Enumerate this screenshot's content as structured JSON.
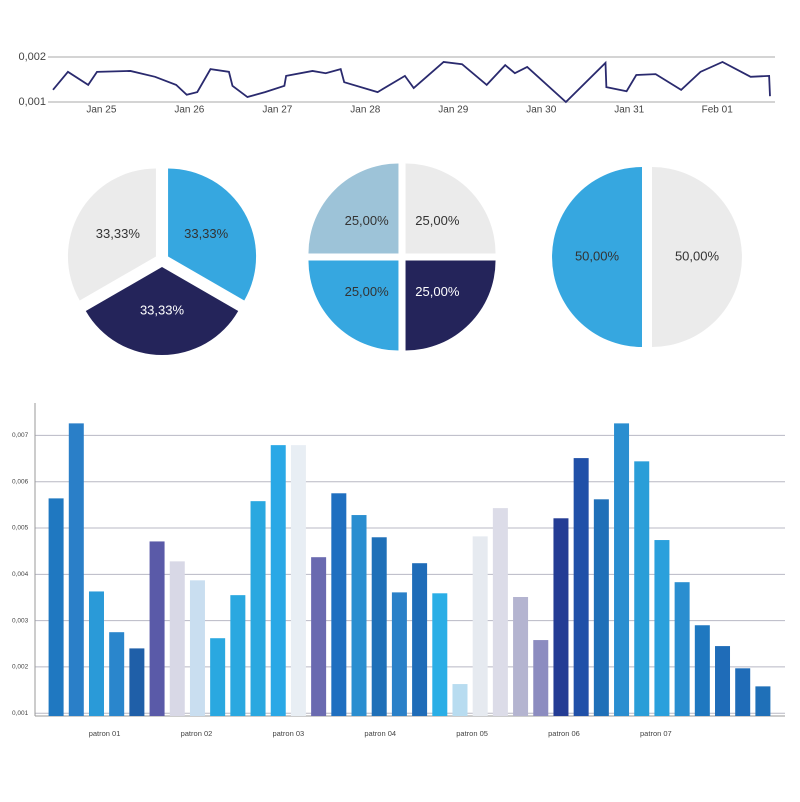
{
  "chart_data": [
    {
      "type": "line",
      "x": [
        -0.55,
        -0.38,
        -0.15,
        -0.05,
        0.33,
        0.61,
        0.85,
        0.97,
        1.09,
        1.24,
        1.45,
        1.49,
        1.66,
        1.86,
        2.08,
        2.1,
        2.4,
        2.55,
        2.72,
        2.76,
        3.14,
        3.45,
        3.55,
        3.89,
        4.1,
        4.38,
        4.59,
        4.7,
        4.84,
        5.28,
        5.73,
        5.74,
        5.97,
        6.08,
        6.3,
        6.59,
        6.81,
        7.06,
        7.38,
        7.59,
        7.6
      ],
      "series": [
        {
          "color": "#2a2a6e",
          "values": [
            0.00127,
            0.00167,
            0.00138,
            0.00167,
            0.00169,
            0.00156,
            0.00138,
            0.00116,
            0.00122,
            0.00173,
            0.00167,
            0.00136,
            0.00111,
            0.00122,
            0.00136,
            0.00158,
            0.00169,
            0.00164,
            0.00173,
            0.00144,
            0.00122,
            0.00158,
            0.00131,
            0.00189,
            0.00184,
            0.00138,
            0.00182,
            0.00164,
            0.00178,
            0.001,
            0.00187,
            0.00133,
            0.00124,
            0.0016,
            0.00162,
            0.00127,
            0.00167,
            0.00189,
            0.00156,
            0.00158,
            0.00113
          ]
        }
      ],
      "xlim": [
        -0.55,
        7.6
      ],
      "xticks": [
        {
          "value": 0,
          "label": "Jan 25"
        },
        {
          "value": 1,
          "label": "Jan 26"
        },
        {
          "value": 2,
          "label": "Jan 27"
        },
        {
          "value": 3,
          "label": "Jan 28"
        },
        {
          "value": 4,
          "label": "Jan 29"
        },
        {
          "value": 5,
          "label": "Jan 30"
        },
        {
          "value": 6,
          "label": "Jan 31"
        },
        {
          "value": 7,
          "label": "Feb 01"
        }
      ],
      "ylim": [
        0.001,
        0.002
      ],
      "yticks": [
        {
          "value": 0.002,
          "label": "0,002"
        },
        {
          "value": 0.001,
          "label": "0,001"
        }
      ],
      "grid": true
    },
    {
      "type": "pie",
      "values": [
        33.33,
        33.33,
        33.33
      ],
      "value_labels": [
        "33,33%",
        "33,33%",
        "33,33%"
      ],
      "colors": [
        "#36a7e0",
        "#24245a",
        "#ebebeb"
      ]
    },
    {
      "type": "pie",
      "values": [
        25,
        25,
        25,
        25
      ],
      "value_labels": [
        "25,00%",
        "25,00%",
        "25,00%",
        "25,00%"
      ],
      "colors": [
        "#ebebeb",
        "#24245a",
        "#36a7e0",
        "#9dc3d8"
      ]
    },
    {
      "type": "pie",
      "values": [
        50,
        50
      ],
      "value_labels": [
        "50,00%",
        "50,00%"
      ],
      "colors": [
        "#ebebeb",
        "#36a7e0"
      ]
    },
    {
      "type": "bar",
      "values": [
        0.00564,
        0.00726,
        0.00363,
        0.00275,
        0.0024,
        0.00471,
        0.00428,
        0.00387,
        0.00262,
        0.00355,
        0.00558,
        0.00679,
        0.00679,
        0.00437,
        0.00575,
        0.00528,
        0.0048,
        0.00361,
        0.00424,
        0.00359,
        0.00163,
        0.00482,
        0.00543,
        0.00351,
        0.00258,
        0.00521,
        0.00651,
        0.00562,
        0.00726,
        0.00644,
        0.00474,
        0.00383,
        0.0029,
        0.00245,
        0.00197,
        0.00158
      ],
      "colors": [
        "#1f78c1",
        "#2a7fc8",
        "#2a9ad8",
        "#2a86cc",
        "#1f5fa8",
        "#5a5aa8",
        "#d8d8e6",
        "#c9def0",
        "#2aa8e0",
        "#2aa8e0",
        "#2aa8e0",
        "#2aa8e6",
        "#e8eef4",
        "#6a6ab0",
        "#1f6fc0",
        "#2a8ed0",
        "#1f70b8",
        "#2a80c8",
        "#1f6cb8",
        "#2aaee6",
        "#b8dcf0",
        "#e6eaf0",
        "#dcdce8",
        "#b4b4d0",
        "#8c8cc0",
        "#243c94",
        "#2050a8",
        "#1f70b8",
        "#2a8ed0",
        "#2a9ed8",
        "#2aa0dc",
        "#2a8ed0",
        "#1f78c0",
        "#1f6cb8",
        "#1f6cb8",
        "#1f70b8"
      ],
      "xlim": [
        -0.5,
        35.5
      ],
      "xticks": [
        {
          "value": 2.4,
          "label": "patron 01"
        },
        {
          "value": 6.95,
          "label": "patron 02"
        },
        {
          "value": 11.5,
          "label": "patron 03"
        },
        {
          "value": 16.05,
          "label": "patron 04"
        },
        {
          "value": 20.6,
          "label": "patron 05"
        },
        {
          "value": 25.15,
          "label": "patron 06"
        },
        {
          "value": 29.7,
          "label": "patron 07"
        }
      ],
      "ylim": [
        0.00094,
        0.0077
      ],
      "yticks": [
        {
          "value": 0.007,
          "label": "0,007"
        },
        {
          "value": 0.006,
          "label": "0,006"
        },
        {
          "value": 0.005,
          "label": "0,005"
        },
        {
          "value": 0.004,
          "label": "0,004"
        },
        {
          "value": 0.003,
          "label": "0,003"
        },
        {
          "value": 0.002,
          "label": "0,002"
        },
        {
          "value": 0.001,
          "label": "0,001"
        }
      ],
      "grid": true
    }
  ]
}
